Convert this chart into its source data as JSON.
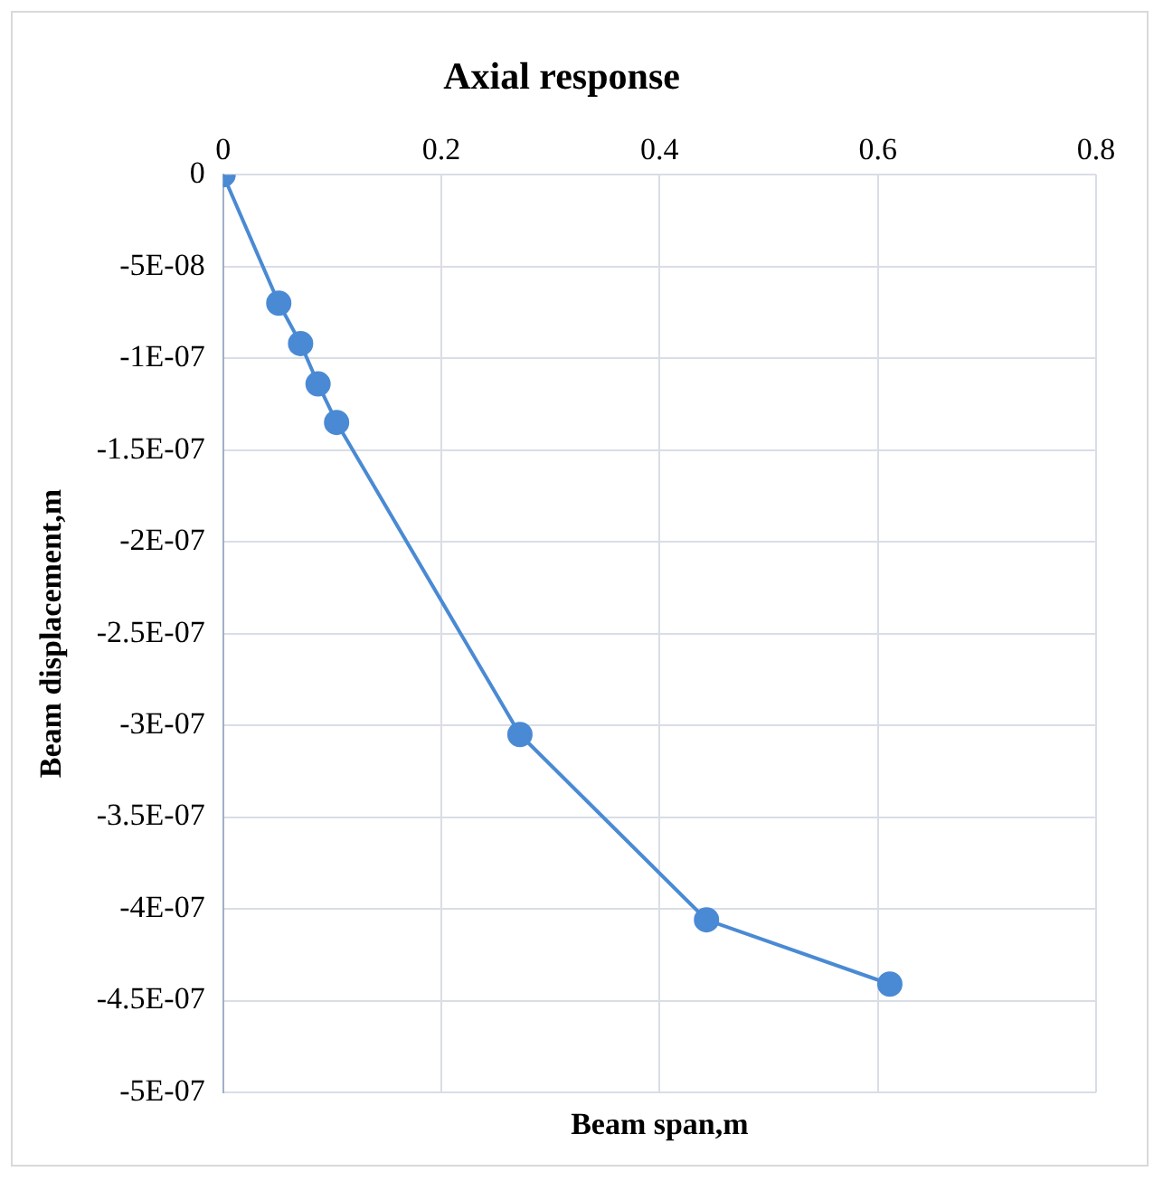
{
  "chart_data": {
    "type": "line",
    "title": "Axial response",
    "xlabel": "Beam span,m",
    "ylabel": "Beam displacement,m",
    "x": [
      0,
      0.051,
      0.071,
      0.087,
      0.104,
      0.272,
      0.443,
      0.611
    ],
    "series": [
      {
        "color": "#4a8ad4",
        "values": [
          0,
          -7e-08,
          -9.2e-08,
          -1.14e-07,
          -1.35e-07,
          -3.05e-07,
          -4.06e-07,
          -4.41e-07
        ]
      }
    ],
    "xlim": [
      0,
      0.8
    ],
    "xticks": [
      0,
      0.2,
      0.4,
      0.6,
      0.8
    ],
    "ylim": [
      -5e-07,
      0
    ],
    "yticks": [
      0,
      {
        "value": -5e-08,
        "label": "-5E-08"
      },
      {
        "value": -1e-07,
        "label": "-1E-07"
      },
      {
        "value": -1.5e-07,
        "label": "-1.5E-07"
      },
      {
        "value": -2e-07,
        "label": "-2E-07"
      },
      {
        "value": -2.5e-07,
        "label": "-2.5E-07"
      },
      {
        "value": -3e-07,
        "label": "-3E-07"
      },
      {
        "value": -3.5e-07,
        "label": "-3.5E-07"
      },
      {
        "value": -4e-07,
        "label": "-4E-07"
      },
      {
        "value": -4.5e-07,
        "label": "-4.5E-07"
      },
      {
        "value": -5e-07,
        "label": "-5E-07"
      }
    ],
    "grid": true,
    "legend": false,
    "marker": "circle",
    "line_style": "solid"
  }
}
